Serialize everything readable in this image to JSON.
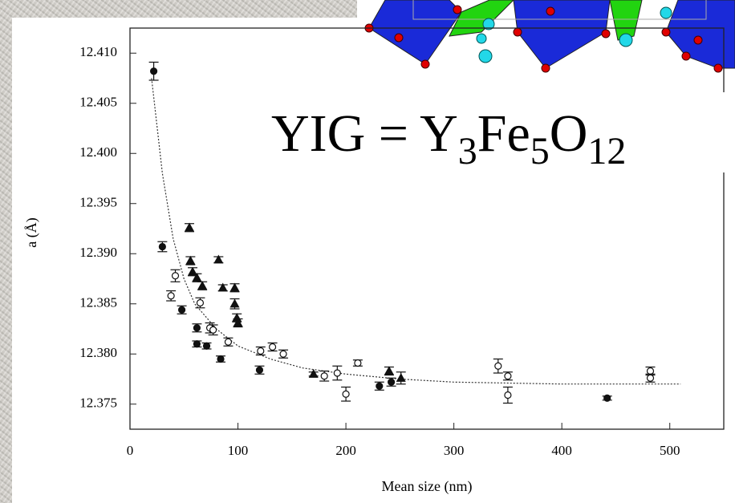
{
  "chart_data": {
    "type": "scatter",
    "x_label": "Mean size (nm)",
    "y_label": "a (Å)",
    "annotation": [
      "YIG = Y",
      "3",
      "Fe",
      "5",
      "O",
      "12"
    ],
    "xlim": [
      0,
      550
    ],
    "ylim": [
      12.3725,
      12.4125
    ],
    "xticks": [
      0,
      100,
      200,
      300,
      400,
      500
    ],
    "yticks": [
      12.375,
      {
        "value": 12.38,
        "label": "12.380"
      },
      12.385,
      {
        "value": 12.39,
        "label": "12.390"
      },
      12.395,
      {
        "value": 12.4,
        "label": "12.400"
      },
      12.405,
      {
        "value": 12.41,
        "label": "12.410"
      }
    ],
    "series": [
      {
        "marker": "filled-circle",
        "color": "#111111",
        "x": [
          22,
          30,
          48,
          62,
          62,
          71,
          84,
          120,
          231,
          242,
          442
        ],
        "values": [
          12.4082,
          12.3907,
          12.3844,
          12.3826,
          12.381,
          12.3808,
          12.3795,
          12.3784,
          12.3768,
          12.3772,
          12.3756
        ],
        "errors": [
          0.0009,
          0.0005,
          0.0004,
          0.0004,
          0.0003,
          0.0003,
          0.0003,
          0.0004,
          0.0004,
          0.0004,
          0.0002
        ]
      },
      {
        "marker": "triangle",
        "color": "#111111",
        "x": [
          55,
          56,
          58,
          62,
          67,
          82,
          86,
          97,
          97,
          99,
          100,
          170,
          240,
          251
        ],
        "values": [
          12.3926,
          12.3893,
          12.3882,
          12.3876,
          12.3868,
          12.3894,
          12.3866,
          12.3866,
          12.385,
          12.3836,
          12.3831,
          12.378,
          12.3783,
          12.3776
        ],
        "errors": [
          0.0004,
          0.0004,
          0.0004,
          0.0004,
          0.0004,
          0.0003,
          0.0003,
          0.0004,
          0.0005,
          0.0004,
          0.0004,
          0.0002,
          0.0004,
          0.0006
        ]
      },
      {
        "marker": "open-circle",
        "color": "#111111",
        "x": [
          38,
          42,
          65,
          74,
          77,
          91,
          121,
          132,
          142,
          180,
          192,
          200,
          211,
          341,
          350,
          350,
          482,
          482
        ],
        "values": [
          12.3858,
          12.3878,
          12.3851,
          12.3826,
          12.3824,
          12.3812,
          12.3803,
          12.3807,
          12.38,
          12.3778,
          12.3781,
          12.376,
          12.3791,
          12.3788,
          12.3778,
          12.3759,
          12.3783,
          12.3776
        ],
        "errors": [
          0.0005,
          0.0006,
          0.0005,
          0.0005,
          0.0005,
          0.0004,
          0.0004,
          0.0004,
          0.0004,
          0.0005,
          0.0007,
          0.0007,
          0.0003,
          0.0007,
          0.0004,
          0.0008,
          0.0004,
          0.0004
        ]
      }
    ],
    "fit": {
      "color": "#333333",
      "x": [
        20,
        30,
        40,
        50,
        60,
        80,
        100,
        130,
        160,
        200,
        250,
        300,
        400,
        510
      ],
      "y": [
        12.4075,
        12.398,
        12.3915,
        12.3875,
        12.385,
        12.3825,
        12.3808,
        12.3795,
        12.3786,
        12.378,
        12.3775,
        12.3772,
        12.377,
        12.377
      ]
    }
  }
}
